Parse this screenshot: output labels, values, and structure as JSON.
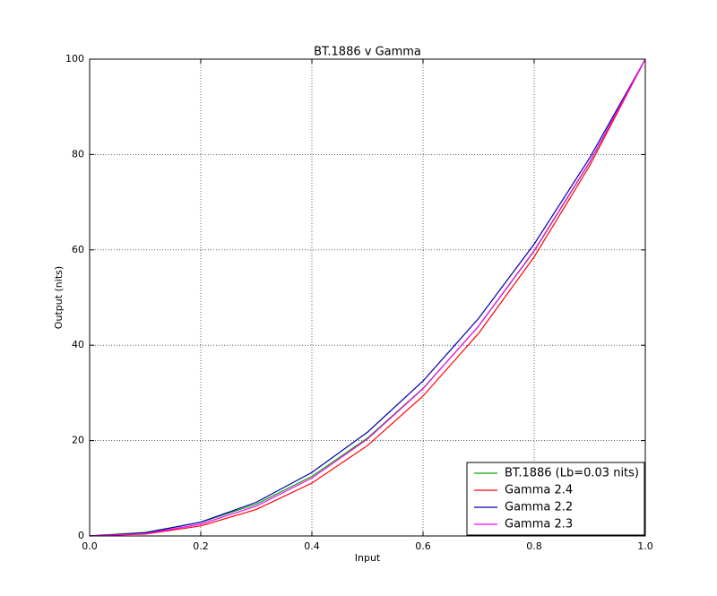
{
  "chart_data": {
    "type": "line",
    "title": "BT.1886 v Gamma",
    "xlabel": "Input",
    "ylabel": "Output (nits)",
    "x": [
      0,
      0.1,
      0.2,
      0.3,
      0.4,
      0.5,
      0.6,
      0.7,
      0.8,
      0.9,
      1.0
    ],
    "series": [
      {
        "name": "BT.1886 (Lb=0.03 nits)",
        "color": "#00aa00",
        "values": [
          0.03,
          0.76,
          2.85,
          6.68,
          12.5,
          20.53,
          30.97,
          43.98,
          59.73,
          78.36,
          100
        ]
      },
      {
        "name": "Gamma 2.4",
        "color": "#ff0000",
        "values": [
          0,
          0.4,
          2.1,
          5.56,
          11.09,
          18.95,
          29.35,
          42.49,
          58.53,
          77.66,
          100
        ]
      },
      {
        "name": "Gamma 2.2",
        "color": "#0000aa",
        "values": [
          0,
          0.63,
          2.9,
          7.07,
          13.32,
          21.76,
          32.5,
          45.63,
          61.21,
          79.31,
          100
        ]
      },
      {
        "name": "Gamma 2.3",
        "color": "#ff00ff",
        "values": [
          0,
          0.5,
          2.47,
          6.27,
          12.15,
          20.31,
          30.88,
          44.03,
          59.86,
          78.48,
          100
        ]
      }
    ],
    "xlim": [
      0,
      1
    ],
    "ylim": [
      0,
      100
    ],
    "xticks": [
      {
        "value": 0,
        "label": "0.0"
      },
      {
        "value": 0.2,
        "label": "0.2"
      },
      {
        "value": 0.4,
        "label": "0.4"
      },
      {
        "value": 0.6,
        "label": "0.6"
      },
      {
        "value": 0.8,
        "label": "0.8"
      },
      {
        "value": 1,
        "label": "1.0"
      }
    ],
    "yticks": [
      0,
      20,
      40,
      60,
      80,
      100
    ],
    "grid": true,
    "legend": "lower right"
  }
}
